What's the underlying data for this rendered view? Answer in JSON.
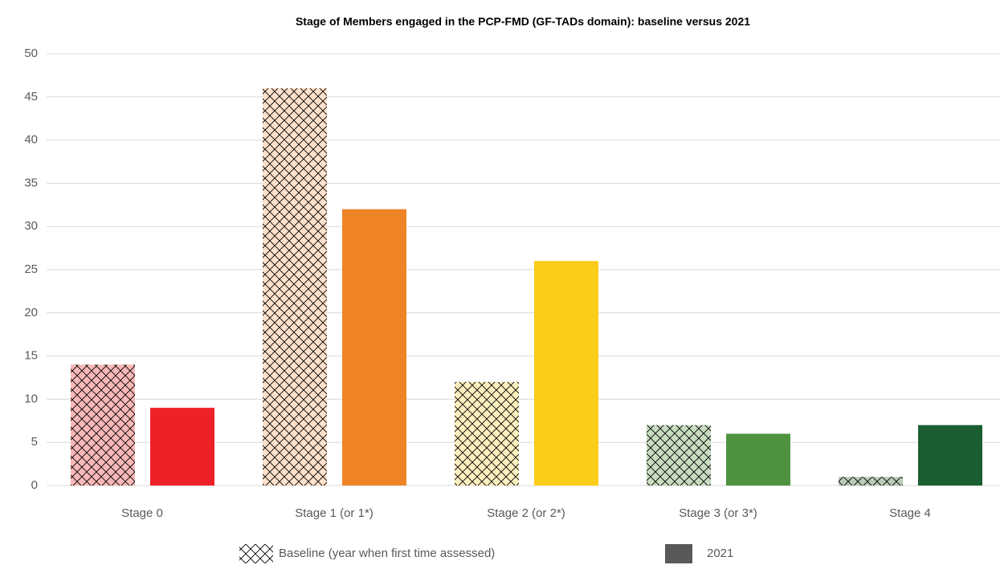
{
  "chart_data": {
    "type": "bar",
    "title": "Stage of Members engaged in the PCP-FMD (GF-TADs domain): baseline versus 2021",
    "categories": [
      "Stage 0",
      "Stage 1 (or 1*)",
      "Stage 2 (or 2*)",
      "Stage 3 (or 3*)",
      "Stage 4"
    ],
    "series": [
      {
        "name": "Baseline (year when first time assessed)",
        "color": "#ffffff",
        "hatch": true,
        "colors": [
          "#f9b8b8",
          "#fde1cc",
          "#fdf0c0",
          "#c8dcc0",
          "#b9cdb5"
        ],
        "values": [
          14,
          46,
          12,
          7,
          1
        ]
      },
      {
        "name": "2021",
        "color": "#595959",
        "hatch": false,
        "colors": [
          "#ee2127",
          "#ee8425",
          "#fccc1a",
          "#4f9340",
          "#1b5e32"
        ],
        "values": [
          9,
          32,
          26,
          6,
          7
        ]
      }
    ],
    "ylim": [
      0,
      50
    ],
    "yticks": [
      0,
      5,
      10,
      15,
      20,
      25,
      30,
      35,
      40,
      45,
      50
    ],
    "grid": true
  }
}
